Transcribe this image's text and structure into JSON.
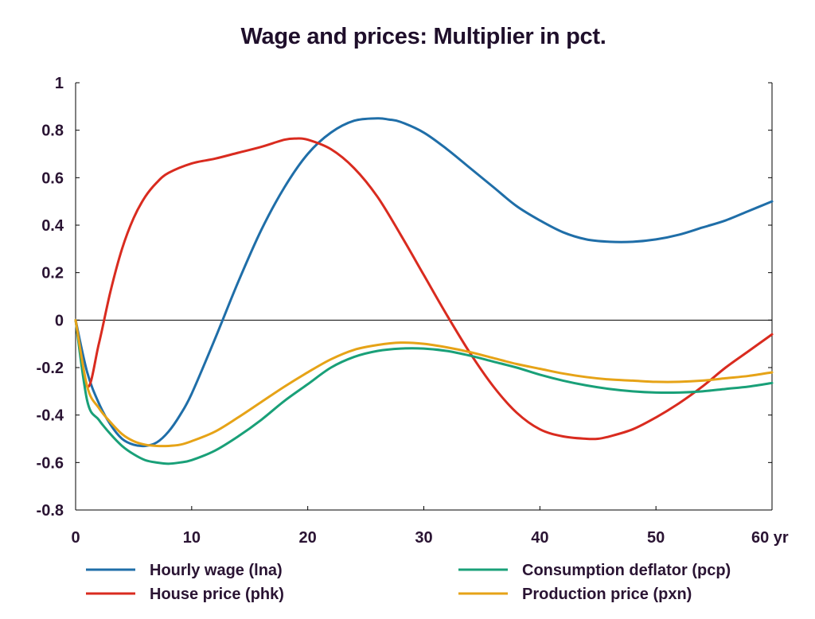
{
  "chart_data": {
    "type": "line",
    "title": "Wage and prices: Multiplier in pct.",
    "xlabel": "",
    "ylabel": "",
    "x_unit_label": "yr",
    "xlim": [
      0,
      60
    ],
    "ylim": [
      -0.8,
      1
    ],
    "x_ticks": [
      0,
      10,
      20,
      30,
      40,
      50,
      60
    ],
    "x_tick_labels": [
      "0",
      "10",
      "20",
      "30",
      "40",
      "50",
      "60 yr"
    ],
    "y_ticks": [
      1,
      0.8,
      0.6,
      0.4,
      0.2,
      0,
      -0.2,
      -0.4,
      -0.6,
      -0.8
    ],
    "y_tick_labels": [
      "1",
      "0.8",
      "0.6",
      "0.4",
      "0.2",
      "0",
      "-0.2",
      "-0.4",
      "-0.6",
      "-0.8"
    ],
    "grid": false,
    "zero_line": true,
    "legend_position": "bottom",
    "series": [
      {
        "name": "Hourly wage (lna)",
        "color": "#1f6ea8",
        "x": [
          0,
          1,
          2,
          3,
          4,
          5,
          6,
          7,
          8,
          9,
          10,
          12,
          14,
          16,
          18,
          20,
          22,
          24,
          26,
          27,
          28,
          30,
          32,
          34,
          36,
          38,
          40,
          42,
          44,
          46,
          48,
          50,
          52,
          54,
          56,
          58,
          60
        ],
        "y": [
          0,
          -0.22,
          -0.35,
          -0.44,
          -0.5,
          -0.525,
          -0.53,
          -0.515,
          -0.47,
          -0.4,
          -0.31,
          -0.08,
          0.16,
          0.38,
          0.56,
          0.7,
          0.79,
          0.84,
          0.85,
          0.845,
          0.835,
          0.79,
          0.72,
          0.64,
          0.56,
          0.48,
          0.42,
          0.37,
          0.34,
          0.33,
          0.33,
          0.34,
          0.36,
          0.39,
          0.42,
          0.46,
          0.5
        ]
      },
      {
        "name": "House price (phk)",
        "color": "#d92b1f",
        "x": [
          0,
          1,
          2,
          3,
          4,
          5,
          6,
          7,
          8,
          10,
          12,
          14,
          16,
          18,
          19,
          20,
          22,
          24,
          26,
          28,
          30,
          32,
          34,
          36,
          38,
          40,
          42,
          44,
          45,
          46,
          48,
          50,
          52,
          54,
          56,
          58,
          60
        ],
        "y": [
          0,
          -0.28,
          -0.1,
          0.12,
          0.3,
          0.43,
          0.52,
          0.58,
          0.62,
          0.66,
          0.68,
          0.705,
          0.73,
          0.76,
          0.765,
          0.76,
          0.72,
          0.64,
          0.52,
          0.36,
          0.19,
          0.02,
          -0.14,
          -0.28,
          -0.39,
          -0.46,
          -0.49,
          -0.5,
          -0.5,
          -0.49,
          -0.46,
          -0.41,
          -0.35,
          -0.28,
          -0.2,
          -0.13,
          -0.06
        ]
      },
      {
        "name": "Consumption deflator (pcp)",
        "color": "#19a078",
        "x": [
          0,
          1,
          2,
          3,
          4,
          5,
          6,
          7,
          8,
          9,
          10,
          12,
          14,
          16,
          18,
          20,
          22,
          24,
          26,
          28,
          30,
          32,
          34,
          36,
          38,
          40,
          42,
          44,
          46,
          48,
          50,
          52,
          54,
          56,
          58,
          60
        ],
        "y": [
          0,
          -0.34,
          -0.42,
          -0.48,
          -0.53,
          -0.565,
          -0.59,
          -0.6,
          -0.605,
          -0.6,
          -0.59,
          -0.55,
          -0.49,
          -0.42,
          -0.34,
          -0.27,
          -0.2,
          -0.155,
          -0.13,
          -0.12,
          -0.12,
          -0.13,
          -0.15,
          -0.175,
          -0.2,
          -0.23,
          -0.255,
          -0.275,
          -0.29,
          -0.3,
          -0.305,
          -0.305,
          -0.3,
          -0.29,
          -0.28,
          -0.265
        ]
      },
      {
        "name": "Production price (pxn)",
        "color": "#e6a317",
        "x": [
          0,
          1,
          2,
          3,
          4,
          5,
          6,
          7,
          8,
          9,
          10,
          12,
          14,
          16,
          18,
          20,
          22,
          24,
          26,
          28,
          30,
          32,
          34,
          36,
          38,
          40,
          42,
          44,
          46,
          48,
          50,
          52,
          54,
          56,
          58,
          60
        ],
        "y": [
          0,
          -0.28,
          -0.37,
          -0.43,
          -0.48,
          -0.51,
          -0.525,
          -0.53,
          -0.53,
          -0.525,
          -0.51,
          -0.47,
          -0.41,
          -0.345,
          -0.28,
          -0.22,
          -0.165,
          -0.125,
          -0.105,
          -0.095,
          -0.1,
          -0.115,
          -0.135,
          -0.16,
          -0.185,
          -0.205,
          -0.225,
          -0.24,
          -0.25,
          -0.255,
          -0.26,
          -0.26,
          -0.255,
          -0.245,
          -0.235,
          -0.22
        ]
      }
    ]
  }
}
